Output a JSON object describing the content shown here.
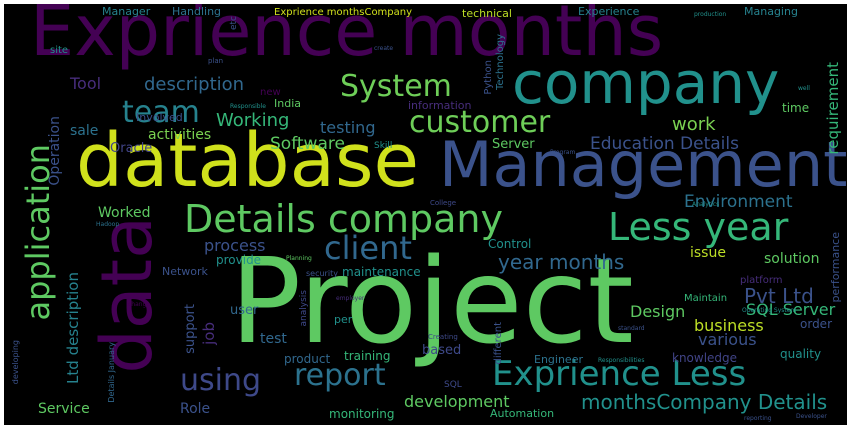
{
  "words": [
    {
      "text": "Project",
      "color": "#5ec962"
    },
    {
      "text": "database",
      "color": "#d0e11c"
    },
    {
      "text": "Exprience months",
      "color": "#440154"
    },
    {
      "text": "Management",
      "color": "#3b528b"
    },
    {
      "text": "company",
      "color": "#21918c"
    },
    {
      "text": "data",
      "color": "#440154"
    },
    {
      "text": "Details company",
      "color": "#5ec962"
    },
    {
      "text": "Less year",
      "color": "#35b779"
    },
    {
      "text": "Exprience Less",
      "color": "#21918c"
    },
    {
      "text": "client",
      "color": "#31688e"
    },
    {
      "text": "application",
      "color": "#5ec962"
    },
    {
      "text": "System",
      "color": "#6ece58"
    },
    {
      "text": "customer",
      "color": "#6ece58"
    },
    {
      "text": "team",
      "color": "#26828e"
    },
    {
      "text": "using",
      "color": "#3e4989"
    },
    {
      "text": "report",
      "color": "#2c728e"
    },
    {
      "text": "Pvt Ltd",
      "color": "#3b528b"
    },
    {
      "text": "year months",
      "color": "#31688e"
    },
    {
      "text": "monthsCompany Details",
      "color": "#21918c"
    },
    {
      "text": "Education Details",
      "color": "#3b528b"
    },
    {
      "text": "description",
      "color": "#31688e"
    },
    {
      "text": "Working",
      "color": "#35b779"
    },
    {
      "text": "testing",
      "color": "#31688e"
    },
    {
      "text": "Software",
      "color": "#5ec962"
    },
    {
      "text": "work",
      "color": "#7ad151"
    },
    {
      "text": "requirement",
      "color": "#35b779"
    },
    {
      "text": "Environment",
      "color": "#2c728e"
    },
    {
      "text": "process",
      "color": "#3b528b"
    },
    {
      "text": "issue",
      "color": "#bddf26"
    },
    {
      "text": "solution",
      "color": "#5ec962"
    },
    {
      "text": "SQL Server",
      "color": "#35b779"
    },
    {
      "text": "Design",
      "color": "#5ec962"
    },
    {
      "text": "various",
      "color": "#3b528b"
    },
    {
      "text": "business",
      "color": "#bddf26"
    },
    {
      "text": "Ltd description",
      "color": "#26828e"
    },
    {
      "text": "job",
      "color": "#472d7b"
    },
    {
      "text": "test",
      "color": "#31688e"
    },
    {
      "text": "Operation",
      "color": "#3b528b"
    },
    {
      "text": "Tool",
      "color": "#472d7b"
    },
    {
      "text": "Worked",
      "color": "#5ec962"
    },
    {
      "text": "activities",
      "color": "#7ad151"
    },
    {
      "text": "sale",
      "color": "#2c728e"
    },
    {
      "text": "Oracle",
      "color": "#414487"
    },
    {
      "text": "Server",
      "color": "#5ec962"
    },
    {
      "text": "Service",
      "color": "#5ec962"
    },
    {
      "text": "Role",
      "color": "#3b528b"
    },
    {
      "text": "development",
      "color": "#5ec962"
    },
    {
      "text": "training",
      "color": "#35b779"
    },
    {
      "text": "product",
      "color": "#31688e"
    },
    {
      "text": "support",
      "color": "#3b528b"
    },
    {
      "text": "user",
      "color": "#31688e"
    },
    {
      "text": "monitoring",
      "color": "#35b779"
    },
    {
      "text": "based",
      "color": "#3e4989"
    },
    {
      "text": "Engineer",
      "color": "#2c728e"
    },
    {
      "text": "knowledge",
      "color": "#414487"
    },
    {
      "text": "quality",
      "color": "#21918c"
    },
    {
      "text": "order",
      "color": "#3b528b"
    },
    {
      "text": "time",
      "color": "#5ec962"
    },
    {
      "text": "performance",
      "color": "#3b528b"
    },
    {
      "text": "Control",
      "color": "#21918c"
    },
    {
      "text": "maintenance",
      "color": "#21918c"
    },
    {
      "text": "provide",
      "color": "#21918c"
    },
    {
      "text": "Network",
      "color": "#3b528b"
    },
    {
      "text": "India",
      "color": "#5ec962"
    },
    {
      "text": "Involved",
      "color": "#3b528b"
    },
    {
      "text": "Manager",
      "color": "#26828e"
    },
    {
      "text": "Handling",
      "color": "#2c728e"
    },
    {
      "text": "Exprience monthsCompany",
      "color": "#d0e11c"
    },
    {
      "text": "technical",
      "color": "#bddf26"
    },
    {
      "text": "Experience",
      "color": "#26828e"
    },
    {
      "text": "Managing",
      "color": "#26828e"
    },
    {
      "text": "Technology",
      "color": "#2c728e"
    },
    {
      "text": "Python",
      "color": "#3b528b"
    },
    {
      "text": "information",
      "color": "#472d7b"
    },
    {
      "text": "Automation",
      "color": "#35b779"
    },
    {
      "text": "different",
      "color": "#3b528b"
    },
    {
      "text": "SQL",
      "color": "#3e4989"
    },
    {
      "text": "Details January",
      "color": "#31688e"
    },
    {
      "text": "developing",
      "color": "#3b528b"
    },
    {
      "text": "analysis",
      "color": "#3e4989"
    },
    {
      "text": "per",
      "color": "#21918c"
    },
    {
      "text": "new",
      "color": "#440154"
    },
    {
      "text": "Skill",
      "color": "#21918c"
    },
    {
      "text": "site",
      "color": "#21918c"
    },
    {
      "text": "etc",
      "color": "#3b528b"
    },
    {
      "text": "plan",
      "color": "#3b528b"
    },
    {
      "text": "Creating",
      "color": "#3e4989"
    },
    {
      "text": "Responsibilities",
      "color": "#21918c"
    },
    {
      "text": "Operating System",
      "color": "#21918c"
    },
    {
      "text": "standard",
      "color": "#3b528b"
    },
    {
      "text": "Maintain",
      "color": "#35b779"
    },
    {
      "text": "platform",
      "color": "#472d7b"
    },
    {
      "text": "employer",
      "color": "#472d7b"
    },
    {
      "text": "security",
      "color": "#3b528b"
    },
    {
      "text": "Planning",
      "color": "#5ec962"
    },
    {
      "text": "change",
      "color": "#440154"
    },
    {
      "text": "Developer",
      "color": "#3b528b"
    },
    {
      "text": "reporting",
      "color": "#3b528b"
    },
    {
      "text": "production",
      "color": "#21918c"
    },
    {
      "text": "College",
      "color": "#3e4989"
    },
    {
      "text": "Hadoop",
      "color": "#2c728e"
    },
    {
      "text": "Analytics",
      "color": "#21918c"
    },
    {
      "text": "Program",
      "color": "#3b528b"
    },
    {
      "text": "Responsible",
      "color": "#21918c"
    },
    {
      "text": "create",
      "color": "#3b528b"
    },
    {
      "text": "well",
      "color": "#21918c"
    }
  ]
}
